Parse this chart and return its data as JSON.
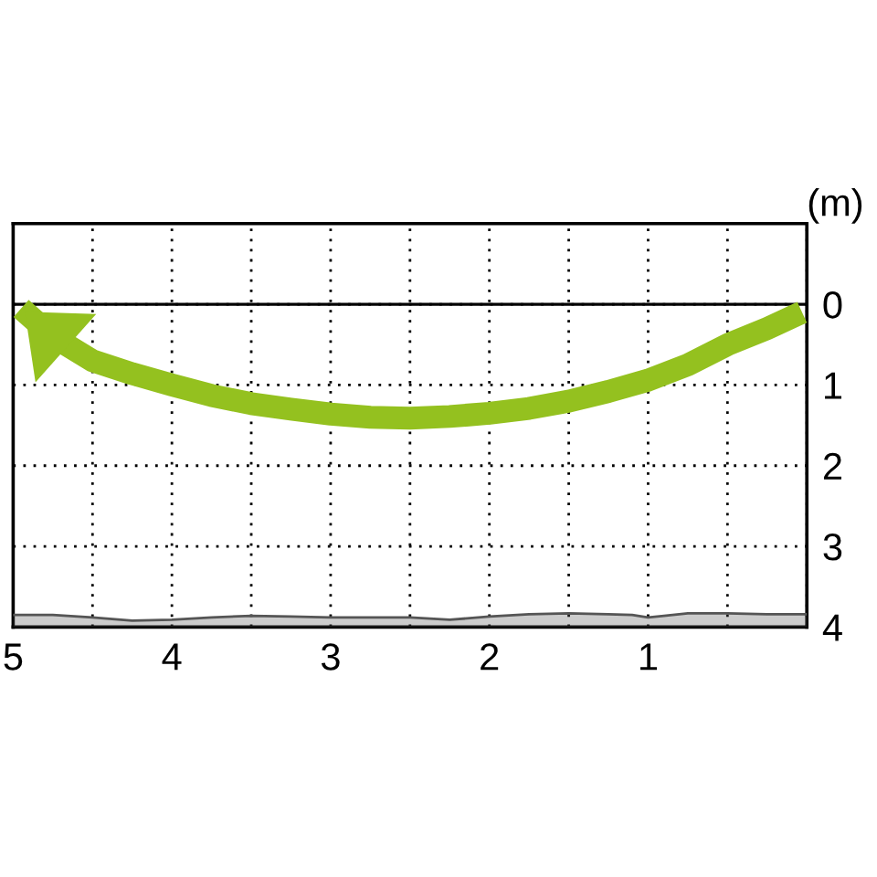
{
  "chart_data": {
    "type": "line",
    "ylabel": "(m)",
    "xlim": [
      5,
      0
    ],
    "ylim": [
      4,
      -1
    ],
    "xticks": [
      5,
      {
        "value": 4.5,
        "label": null
      },
      4,
      {
        "value": 3.5,
        "label": null
      },
      3,
      {
        "value": 2.5,
        "label": null
      },
      2,
      {
        "value": 1.5,
        "label": null
      },
      1,
      {
        "value": 0.5,
        "label": null
      },
      {
        "value": 0,
        "label": null
      }
    ],
    "yticks": [
      0,
      1,
      2,
      3,
      4
    ],
    "tick_labels": "xy",
    "grid": true,
    "line_style": "solid",
    "marker": "none",
    "ref_lines": [
      {
        "axis": "y",
        "value": 0,
        "color": "#000000",
        "line_style": "solid"
      }
    ],
    "series": [
      {
        "type": "line",
        "color": "#94c11f",
        "x": [
          0.03,
          0.25,
          0.5,
          0.75,
          1,
          1.25,
          1.5,
          1.75,
          2,
          2.25,
          2.5,
          2.75,
          3,
          3.25,
          3.5,
          3.75,
          4,
          4.25,
          4.5,
          4.75,
          4.95
        ],
        "values": [
          0.1,
          0.3,
          0.5,
          0.75,
          0.94,
          1.08,
          1.2,
          1.29,
          1.35,
          1.39,
          1.41,
          1.4,
          1.36,
          1.3,
          1.23,
          1.13,
          1.0,
          0.86,
          0.7,
          0.4,
          0.05
        ]
      },
      {
        "type": "line",
        "color": "#555555",
        "lower": [
          3.84,
          3.84,
          3.83,
          3.83,
          3.86,
          3.88,
          3.85,
          3.84,
          3.83,
          3.84,
          3.87,
          3.91,
          3.88,
          3.88,
          3.88,
          3.87,
          3.86,
          3.88,
          3.91,
          3.92,
          3.88,
          3.85,
          3.85
        ],
        "upper": [
          4,
          4,
          4,
          4,
          4,
          4,
          4,
          4,
          4,
          4,
          4,
          4,
          4,
          4,
          4,
          4,
          4,
          4,
          4,
          4,
          4,
          4,
          4
        ],
        "x": [
          0,
          0.25,
          0.5,
          0.75,
          0.9,
          1,
          1.1,
          1.25,
          1.5,
          1.75,
          2,
          2.25,
          2.5,
          2.75,
          3,
          3.25,
          3.5,
          3.75,
          4,
          4.25,
          4.5,
          4.75,
          5
        ],
        "values": [
          3.84,
          3.84,
          3.83,
          3.83,
          3.86,
          3.88,
          3.85,
          3.84,
          3.83,
          3.84,
          3.87,
          3.91,
          3.88,
          3.88,
          3.88,
          3.87,
          3.86,
          3.88,
          3.91,
          3.92,
          3.88,
          3.85,
          3.85
        ]
      }
    ]
  }
}
